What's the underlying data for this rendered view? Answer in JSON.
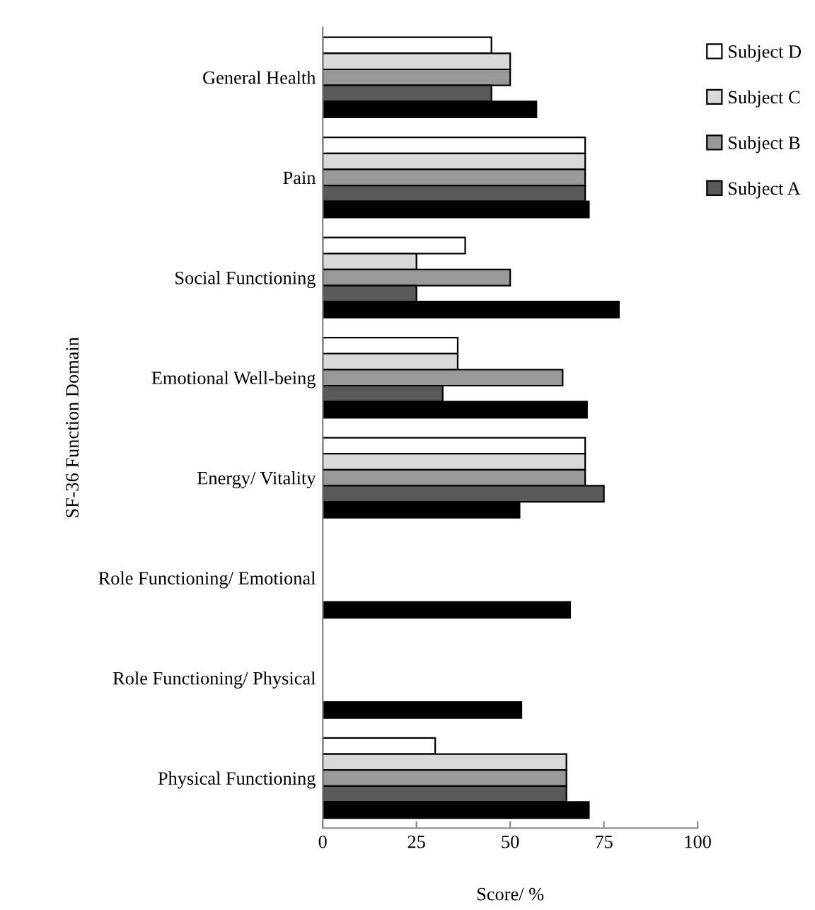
{
  "chart_data": {
    "type": "bar",
    "orientation": "horizontal",
    "xlabel": "Score/ %",
    "ylabel": "SF-36 Function Domain",
    "categories": [
      "General Health",
      "Pain",
      "Social Functioning",
      "Emotional Well-being",
      "Energy/ Vitality",
      "Role Functioning/ Emotional",
      "Role Functioning/ Physical",
      "Physical Functioning"
    ],
    "series": [
      {
        "name": "Subject D",
        "color": "#ffffff",
        "values": [
          45,
          70,
          38,
          36,
          70,
          null,
          null,
          30
        ]
      },
      {
        "name": "Subject C",
        "color": "#d9d9d9",
        "values": [
          50,
          70,
          25,
          36,
          70,
          null,
          null,
          65
        ]
      },
      {
        "name": "Subject B",
        "color": "#999999",
        "values": [
          50,
          70,
          50,
          64,
          70,
          null,
          null,
          65
        ]
      },
      {
        "name": "Subject A",
        "color": "#595959",
        "values": [
          45,
          70,
          25,
          32,
          75,
          null,
          null,
          65
        ]
      },
      {
        "color": "#000000",
        "values": [
          57,
          71,
          79,
          70.5,
          52.5,
          66,
          53,
          71
        ]
      }
    ],
    "xlim": [
      0,
      100
    ],
    "xticks": [
      0,
      25,
      50,
      75,
      100
    ],
    "grid": false,
    "legend": "top right"
  }
}
